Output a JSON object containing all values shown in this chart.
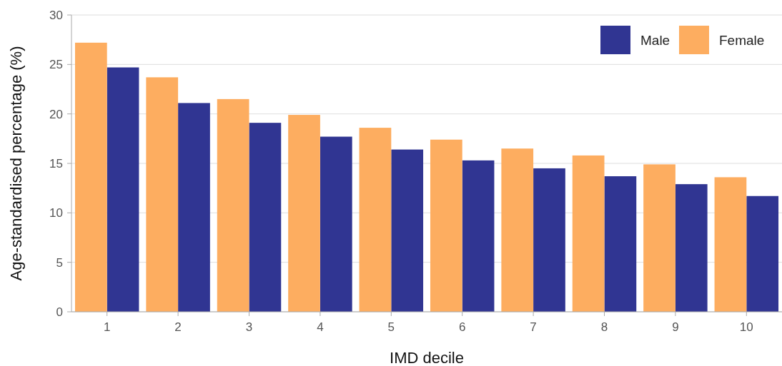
{
  "chart_data": {
    "type": "bar",
    "xlabel": "IMD decile",
    "ylabel": "Age-standardised percentage (%)",
    "categories": [
      "1",
      "2",
      "3",
      "4",
      "5",
      "6",
      "7",
      "8",
      "9",
      "10"
    ],
    "series": [
      {
        "name": "Male",
        "color": "#303592",
        "values": [
          24.7,
          21.1,
          19.1,
          17.7,
          16.4,
          15.3,
          14.5,
          13.7,
          12.9,
          11.7
        ]
      },
      {
        "name": "Female",
        "color": "#fdad60",
        "values": [
          27.2,
          23.7,
          21.5,
          19.9,
          18.6,
          17.4,
          16.5,
          15.8,
          14.9,
          13.6
        ]
      }
    ],
    "ylim": [
      0,
      30
    ],
    "yticks": [
      0,
      5,
      10,
      15,
      20,
      25,
      30
    ],
    "grid": "y",
    "legend": "top right"
  }
}
